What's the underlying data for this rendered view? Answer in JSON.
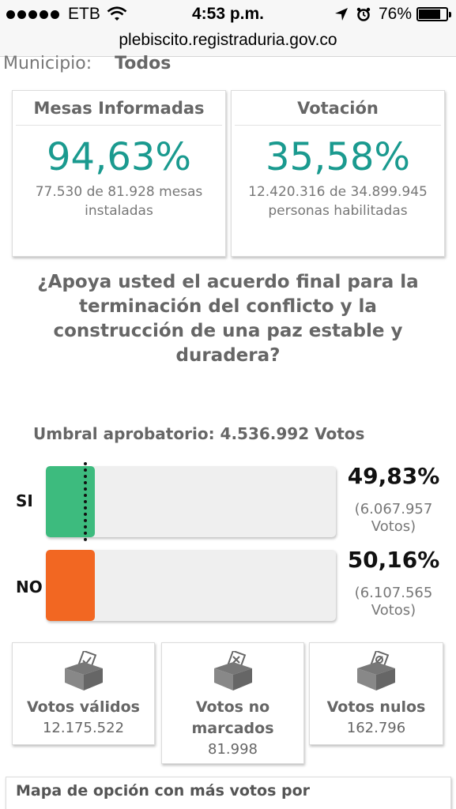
{
  "status_bar": {
    "carrier": "ETB",
    "time": "4:53 p.m.",
    "battery": "76%",
    "battery_level": 0.76,
    "icons": [
      "signal-dots-icon",
      "wifi-icon",
      "location-arrow-icon",
      "alarm-clock-icon",
      "battery-icon"
    ]
  },
  "browser": {
    "url": "plebiscito.registraduria.gov.co"
  },
  "filter": {
    "label": "Municipio:",
    "value": "Todos"
  },
  "stats": [
    {
      "title": "Mesas Informadas",
      "percent": "94,63%",
      "detail_line1": "77.530 de 81.928 mesas",
      "detail_line2": "instaladas"
    },
    {
      "title": "Votación",
      "percent": "35,58%",
      "detail_line1": "12.420.316 de 34.899.945",
      "detail_line2": "personas habilitadas"
    }
  ],
  "question": "¿Apoya usted el acuerdo final para la terminación del conflicto y la construcción de una paz estable y duradera?",
  "threshold": {
    "text": "Umbral aprobatorio: 4.536.992 Votos"
  },
  "options": [
    {
      "label": "SI",
      "percent": "49,83%",
      "votes_line1": "(6.067.957",
      "votes_line2": "Votos)",
      "color": "#3dbb7e",
      "fill_fraction": 0.17
    },
    {
      "label": "NO",
      "percent": "50,16%",
      "votes_line1": "(6.107.565",
      "votes_line2": "Votos)",
      "color": "#f26722",
      "fill_fraction": 0.17
    }
  ],
  "vote_cards": [
    {
      "title": "Votos válidos",
      "value": "12.175.522",
      "icon": "ballot-box-check-icon"
    },
    {
      "title": "Votos no marcados",
      "value": "81.998",
      "icon": "ballot-box-x-icon"
    },
    {
      "title": "Votos nulos",
      "value": "162.796",
      "icon": "ballot-box-null-icon"
    }
  ],
  "map_section": {
    "title": "Mapa de opción con más votos por"
  },
  "colors": {
    "accent_teal": "#1a9a8f",
    "si_green": "#3dbb7e",
    "no_orange": "#f26722",
    "track_gray": "#efefef"
  }
}
